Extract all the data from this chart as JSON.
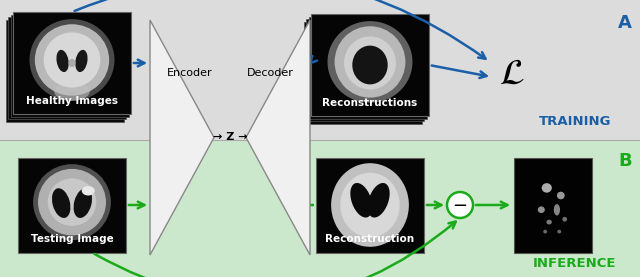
{
  "fig_width": 6.4,
  "fig_height": 2.77,
  "dpi": 100,
  "bg_top": "#dcdcdc",
  "bg_bottom": "#d0ead0",
  "label_A": "A",
  "label_B": "B",
  "label_training": "TRAINING",
  "label_inference": "INFERENCE",
  "label_healthy": "Healthy Images",
  "label_testing": "Testing Image",
  "label_recon_top": "Reconstructions",
  "label_recon_bot": "Reconstruction",
  "label_encoder": "Encoder",
  "label_z": "→ Z →",
  "label_decoder": "Decoder",
  "blue_color": "#1a5fa8",
  "green_color": "#1aaa1a"
}
